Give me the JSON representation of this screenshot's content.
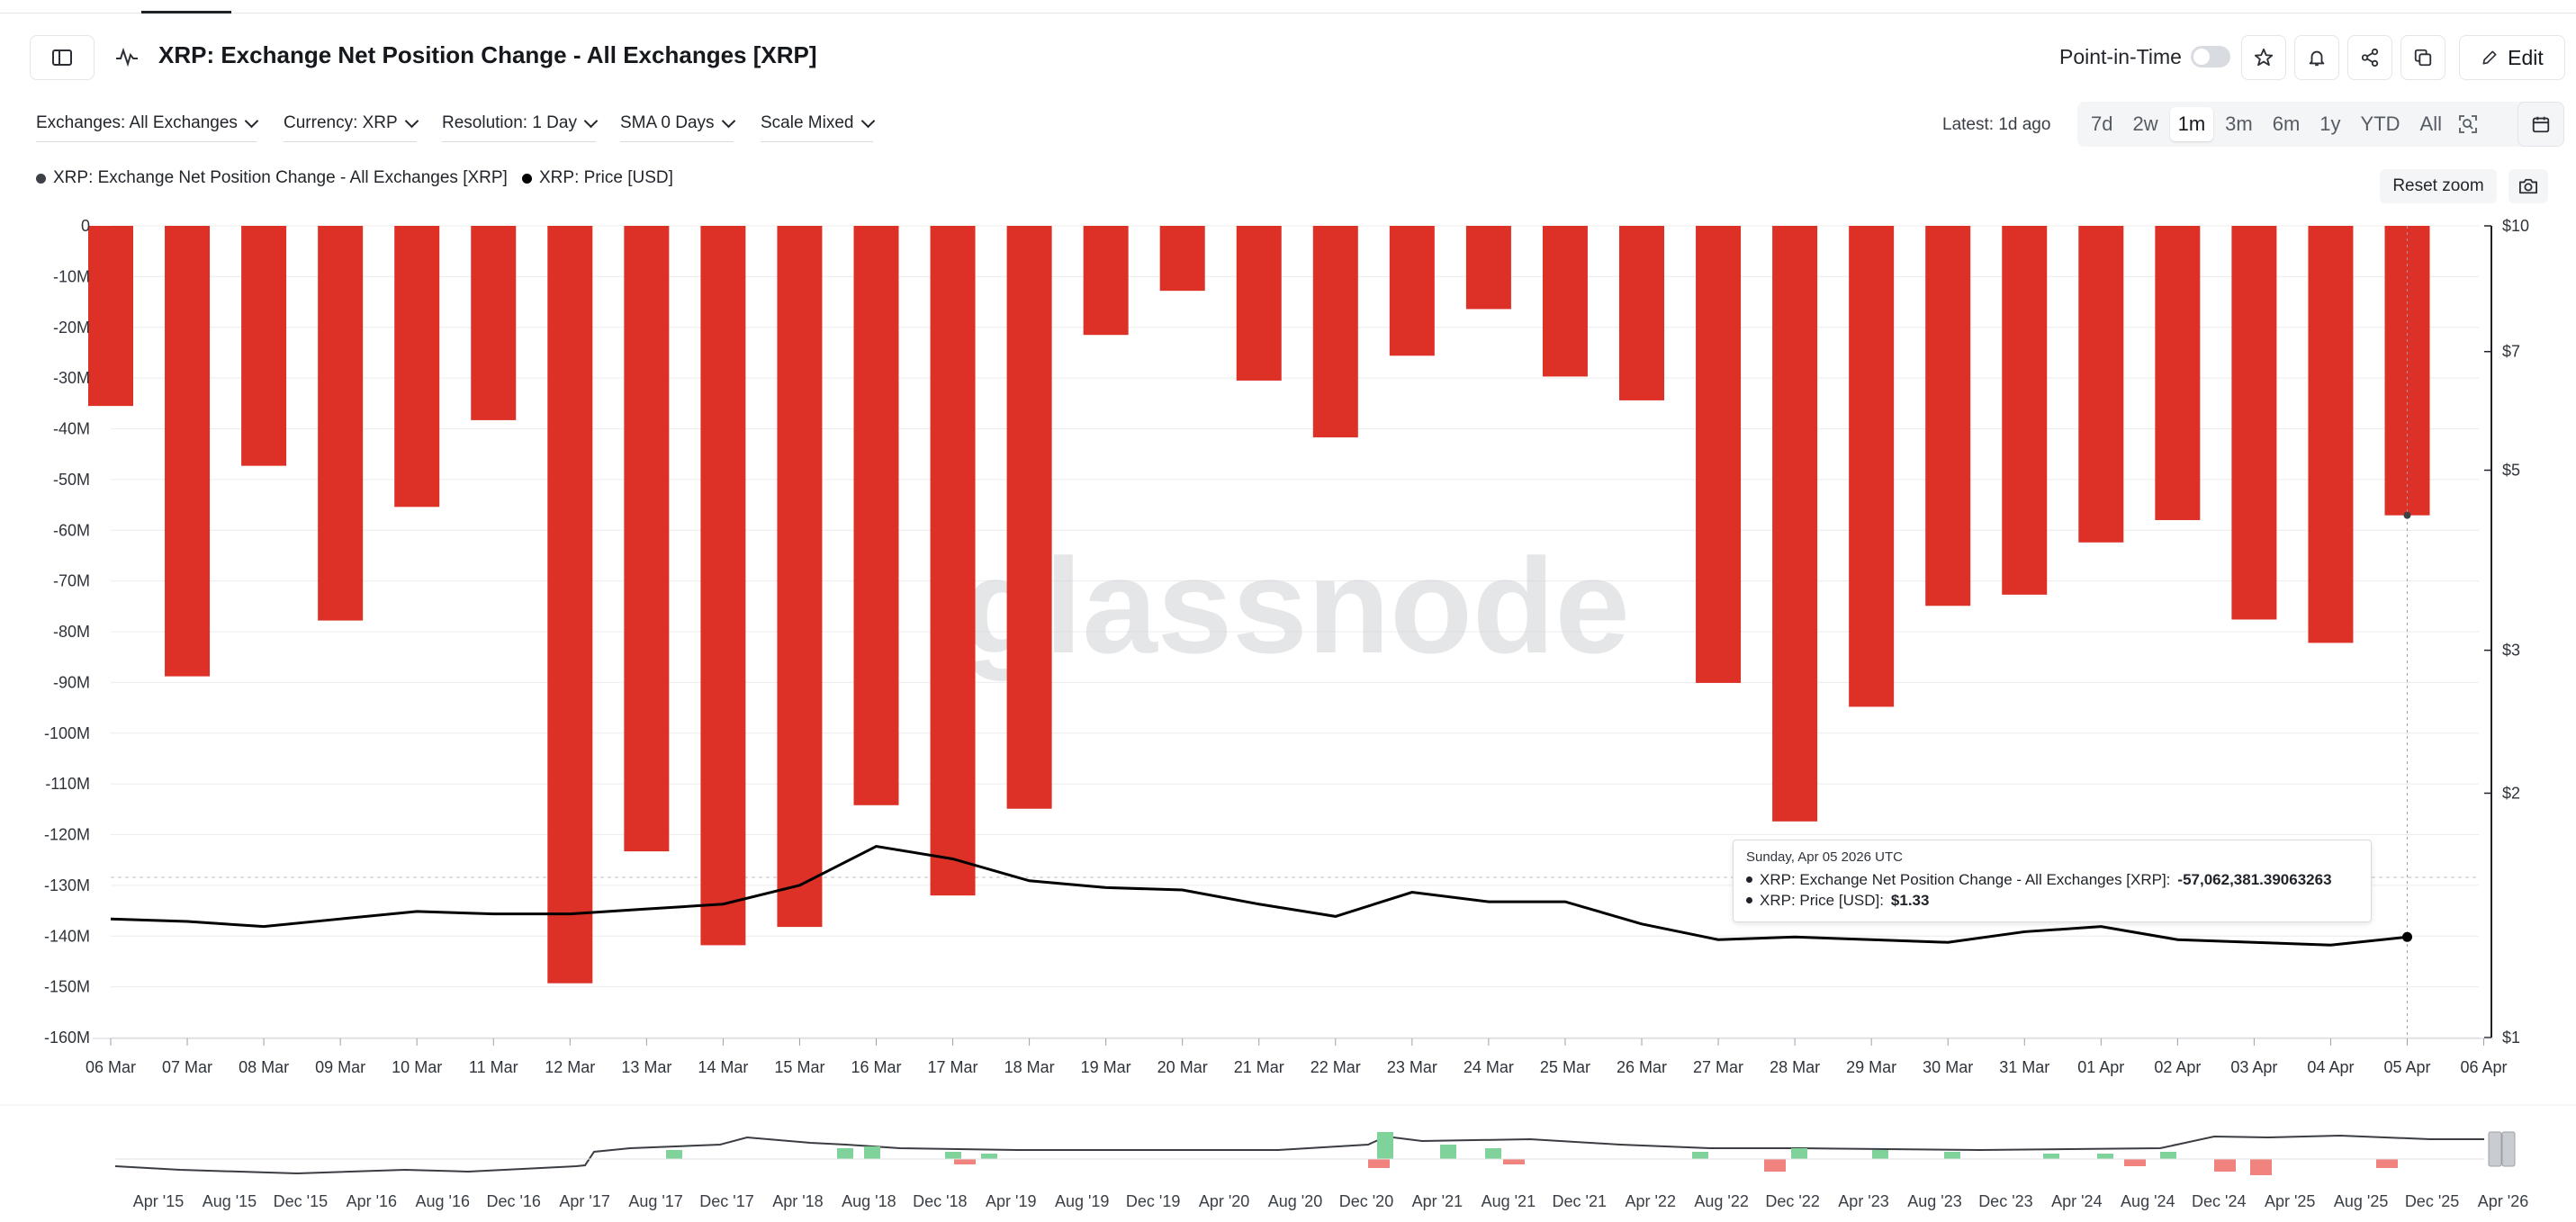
{
  "header": {
    "title": "XRP: Exchange Net Position Change - All Exchanges [XRP]",
    "point_in_time_label": "Point-in-Time",
    "edit_label": "Edit"
  },
  "filters": [
    {
      "label": "Exchanges: All Exchanges"
    },
    {
      "label": "Currency: XRP"
    },
    {
      "label": "Resolution: 1 Day"
    },
    {
      "label": "SMA 0 Days"
    },
    {
      "label": "Scale Mixed"
    }
  ],
  "latest_label": "Latest: 1d ago",
  "ranges": [
    "7d",
    "2w",
    "1m",
    "3m",
    "6m",
    "1y",
    "YTD",
    "All"
  ],
  "active_range": "1m",
  "legend": [
    {
      "name": "XRP: Exchange Net Position Change - All Exchanges [XRP]",
      "color": "#3d4047"
    },
    {
      "name": "XRP: Price [USD]",
      "color": "#000000"
    }
  ],
  "reset_zoom_label": "Reset zoom",
  "watermark": "glassnode",
  "colors": {
    "bar": "#dd3128",
    "price_line": "#000000",
    "nav_positive": "#7fd29a",
    "nav_negative": "#f0837d"
  },
  "chart_data": {
    "type": "bar",
    "categories": [
      "06 Mar",
      "07 Mar",
      "08 Mar",
      "09 Mar",
      "10 Mar",
      "11 Mar",
      "12 Mar",
      "13 Mar",
      "14 Mar",
      "15 Mar",
      "16 Mar",
      "17 Mar",
      "18 Mar",
      "19 Mar",
      "20 Mar",
      "21 Mar",
      "22 Mar",
      "23 Mar",
      "24 Mar",
      "25 Mar",
      "26 Mar",
      "27 Mar",
      "28 Mar",
      "29 Mar",
      "30 Mar",
      "31 Mar",
      "01 Apr",
      "02 Apr",
      "03 Apr",
      "04 Apr",
      "05 Apr"
    ],
    "x_tick_labels": [
      "06 Mar",
      "07 Mar",
      "08 Mar",
      "09 Mar",
      "10 Mar",
      "11 Mar",
      "12 Mar",
      "13 Mar",
      "14 Mar",
      "15 Mar",
      "16 Mar",
      "17 Mar",
      "18 Mar",
      "19 Mar",
      "20 Mar",
      "21 Mar",
      "22 Mar",
      "23 Mar",
      "24 Mar",
      "25 Mar",
      "26 Mar",
      "27 Mar",
      "28 Mar",
      "29 Mar",
      "30 Mar",
      "31 Mar",
      "01 Apr",
      "02 Apr",
      "03 Apr",
      "04 Apr",
      "05 Apr",
      "06 Apr"
    ],
    "series": [
      {
        "name": "XRP: Exchange Net Position Change - All Exchanges [XRP]",
        "type": "bar",
        "axis": "left",
        "values": [
          -35.5,
          -88.8,
          -47.3,
          -77.8,
          -55.4,
          -38.3,
          -149.3,
          -123.3,
          -141.8,
          -138.2,
          -114.2,
          -132.0,
          -114.9,
          -21.5,
          -12.8,
          -30.5,
          -41.7,
          -25.6,
          -16.4,
          -29.7,
          -34.4,
          -90.1,
          -117.4,
          -94.8,
          -74.9,
          -72.7,
          -62.4,
          -58.0,
          -77.6,
          -82.2,
          -57.06
        ]
      },
      {
        "name": "XRP: Price [USD]",
        "type": "line",
        "axis": "right",
        "values": [
          1.4,
          1.39,
          1.37,
          1.4,
          1.43,
          1.42,
          1.42,
          1.44,
          1.46,
          1.54,
          1.72,
          1.66,
          1.56,
          1.53,
          1.52,
          1.46,
          1.41,
          1.51,
          1.47,
          1.47,
          1.38,
          1.32,
          1.33,
          1.32,
          1.31,
          1.35,
          1.37,
          1.32,
          1.31,
          1.3,
          1.33
        ]
      }
    ],
    "y_left": {
      "ticks": [
        "0",
        "-10M",
        "-20M",
        "-30M",
        "-40M",
        "-50M",
        "-60M",
        "-70M",
        "-80M",
        "-90M",
        "-100M",
        "-110M",
        "-120M",
        "-130M",
        "-140M",
        "-150M",
        "-160M"
      ],
      "ylim": [
        -160,
        0
      ],
      "unit": "M"
    },
    "y_right": {
      "scale": "log",
      "ticks": [
        "$10",
        "$7",
        "$5",
        "$3",
        "$2",
        "$1"
      ],
      "tick_values": [
        10,
        7,
        5,
        3,
        2,
        1
      ],
      "ylim": [
        1,
        10
      ]
    },
    "navigator": {
      "x_tick_labels": [
        "Apr '15",
        "Aug '15",
        "Dec '15",
        "Apr '16",
        "Aug '16",
        "Dec '16",
        "Apr '17",
        "Aug '17",
        "Dec '17",
        "Apr '18",
        "Aug '18",
        "Dec '18",
        "Apr '19",
        "Aug '19",
        "Dec '19",
        "Apr '20",
        "Aug '20",
        "Dec '20",
        "Apr '21",
        "Aug '21",
        "Dec '21",
        "Apr '22",
        "Aug '22",
        "Dec '22",
        "Apr '23",
        "Aug '23",
        "Dec '23",
        "Apr '24",
        "Aug '24",
        "Dec '24",
        "Apr '25",
        "Aug '25",
        "Dec '25",
        "Apr '26"
      ]
    },
    "tooltip": {
      "date": "Sunday, Apr 05 2026 UTC",
      "series1_label": "XRP: Exchange Net Position Change - All Exchanges [XRP]:",
      "series1_value": "-57,062,381.39063263",
      "series2_label": "XRP: Price [USD]:",
      "series2_value": "$1.33"
    },
    "grid": true,
    "legend_position": "top-left"
  }
}
